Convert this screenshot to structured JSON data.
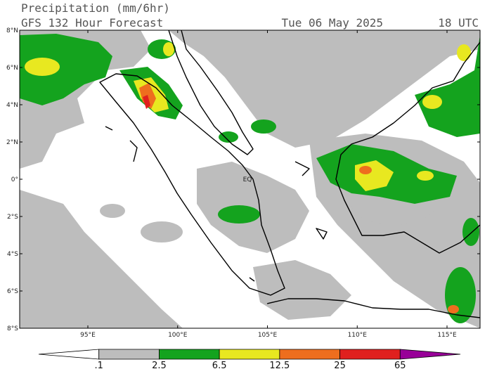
{
  "header": {
    "title": "Precipitation (mm/6hr)",
    "subtitle": "GFS 132 Hour Forecast",
    "date": "Tue 06 May 2025",
    "time": "18 UTC"
  },
  "map": {
    "lat_labels": [
      "8°N",
      "6°N",
      "4°N",
      "2°N",
      "0°",
      "2°S",
      "4°S",
      "6°S",
      "8°S"
    ],
    "lon_labels": [
      "95°E",
      "100°E",
      "105°E",
      "110°E",
      "115°E"
    ],
    "equator_label": "EQ"
  },
  "colorbar": {
    "labels": [
      ".1",
      "2.5",
      "6.5",
      "12.5",
      "25",
      "65"
    ],
    "colors": [
      "#ffffff",
      "#bdbdbd",
      "#14a31e",
      "#e8e820",
      "#ee6e1e",
      "#e0201e",
      "#980098"
    ]
  }
}
